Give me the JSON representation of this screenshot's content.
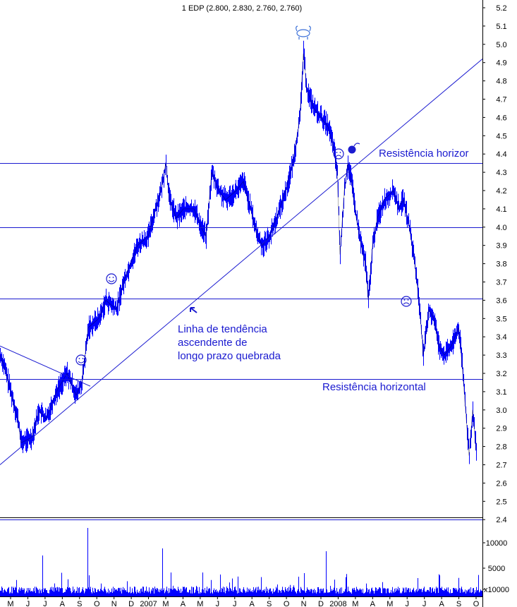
{
  "chart_data": {
    "type": "line",
    "title": "1 EDP (2.800, 2.830, 2.760, 2.760)",
    "y_ticks": [
      "5.2",
      "5.1",
      "5.0",
      "4.9",
      "4.8",
      "4.7",
      "4.6",
      "4.5",
      "4.4",
      "4.3",
      "4.2",
      "4.1",
      "4.0",
      "3.9",
      "3.8",
      "3.7",
      "3.6",
      "3.5",
      "3.4",
      "3.3",
      "3.2",
      "3.1",
      "3.0",
      "2.9",
      "2.8",
      "2.7",
      "2.6",
      "2.5",
      "2.4"
    ],
    "ylim": [
      2.4,
      5.2
    ],
    "x_months": [
      "M",
      "J",
      "J",
      "A",
      "S",
      "O",
      "N",
      "D",
      "2007",
      "M",
      "A",
      "M",
      "J",
      "J",
      "A",
      "S",
      "O",
      "N",
      "D",
      "2008",
      "M",
      "A",
      "M",
      "J",
      "J",
      "A",
      "S",
      "O"
    ],
    "price_keypoints": [
      [
        0,
        3.3
      ],
      [
        5,
        3.25
      ],
      [
        15,
        3.1
      ],
      [
        25,
        2.95
      ],
      [
        30,
        2.82
      ],
      [
        45,
        2.85
      ],
      [
        55,
        3.0
      ],
      [
        65,
        2.95
      ],
      [
        80,
        3.1
      ],
      [
        95,
        3.2
      ],
      [
        108,
        3.08
      ],
      [
        116,
        3.15
      ],
      [
        125,
        3.45
      ],
      [
        140,
        3.5
      ],
      [
        150,
        3.6
      ],
      [
        165,
        3.55
      ],
      [
        175,
        3.7
      ],
      [
        195,
        3.9
      ],
      [
        210,
        3.95
      ],
      [
        220,
        4.1
      ],
      [
        228,
        4.2
      ],
      [
        235,
        4.35
      ],
      [
        240,
        4.15
      ],
      [
        250,
        4.05
      ],
      [
        260,
        4.1
      ],
      [
        275,
        4.1
      ],
      [
        285,
        4.0
      ],
      [
        292,
        3.95
      ],
      [
        300,
        4.3
      ],
      [
        310,
        4.2
      ],
      [
        320,
        4.15
      ],
      [
        335,
        4.2
      ],
      [
        345,
        4.25
      ],
      [
        355,
        4.1
      ],
      [
        365,
        3.95
      ],
      [
        372,
        3.9
      ],
      [
        382,
        3.95
      ],
      [
        392,
        4.05
      ],
      [
        405,
        4.2
      ],
      [
        415,
        4.35
      ],
      [
        425,
        4.6
      ],
      [
        430,
        4.95
      ],
      [
        435,
        4.75
      ],
      [
        445,
        4.65
      ],
      [
        455,
        4.6
      ],
      [
        465,
        4.55
      ],
      [
        472,
        4.45
      ],
      [
        478,
        4.3
      ],
      [
        482,
        3.85
      ],
      [
        488,
        4.2
      ],
      [
        493,
        4.35
      ],
      [
        498,
        4.25
      ],
      [
        505,
        4.05
      ],
      [
        512,
        3.9
      ],
      [
        518,
        3.8
      ],
      [
        522,
        3.6
      ],
      [
        528,
        3.9
      ],
      [
        535,
        4.05
      ],
      [
        545,
        4.15
      ],
      [
        558,
        4.2
      ],
      [
        565,
        4.1
      ],
      [
        572,
        4.15
      ],
      [
        580,
        4.0
      ],
      [
        588,
        3.8
      ],
      [
        595,
        3.55
      ],
      [
        600,
        3.3
      ],
      [
        608,
        3.55
      ],
      [
        615,
        3.5
      ],
      [
        622,
        3.35
      ],
      [
        630,
        3.3
      ],
      [
        640,
        3.35
      ],
      [
        650,
        3.45
      ],
      [
        655,
        3.25
      ],
      [
        660,
        3.0
      ],
      [
        665,
        2.75
      ],
      [
        670,
        3.0
      ],
      [
        675,
        2.78
      ]
    ],
    "horizontal_lines": [
      4.35,
      4.0,
      3.61,
      3.17,
      2.4
    ],
    "trendline": [
      [
        0,
        2.7
      ],
      [
        733,
        4.92
      ]
    ],
    "triangle_top": [
      [
        0,
        3.35
      ],
      [
        128,
        3.13
      ]
    ],
    "volume_ticks": [
      "10000",
      "5000",
      "x10000"
    ],
    "annotations": [
      {
        "id": "trend",
        "lines": [
          "Linha de tendência",
          "ascendente de",
          "longo prazo quebrada"
        ]
      },
      {
        "id": "res-top",
        "text": "Resistência horizor"
      },
      {
        "id": "res-bottom",
        "text": "Resistência horizontal"
      }
    ],
    "colors": {
      "series": "#0000ff",
      "grid_line": "#1a1ad0",
      "annotation": "#1a1ad0",
      "axis": "#000000"
    },
    "grid": false,
    "legend": "none"
  }
}
